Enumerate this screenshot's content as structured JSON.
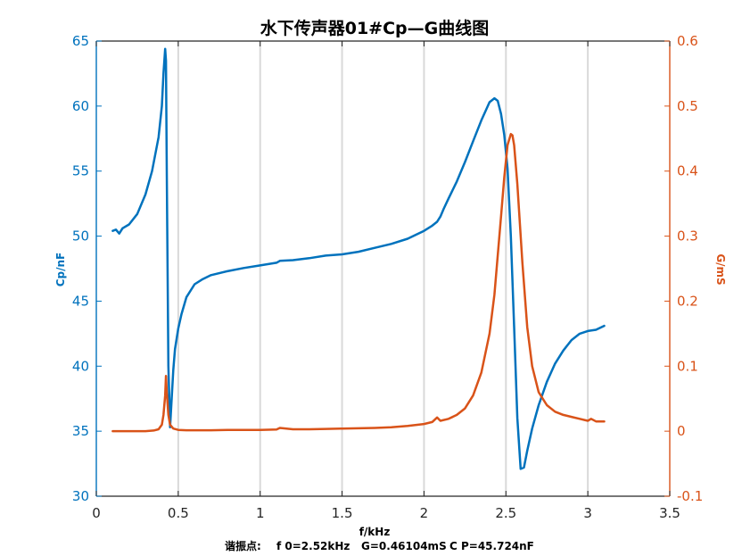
{
  "chart_data": {
    "type": "line",
    "title": "水下传声器01#Cp—G曲线图",
    "xlabel": "f/kHz",
    "ylabel_left": "Cp/nF",
    "ylabel_right": "G/mS",
    "xlim": [
      0,
      3.5
    ],
    "ylim_left": [
      30,
      65
    ],
    "ylim_right": [
      -0.1,
      0.6
    ],
    "x_ticks": [
      "0",
      "0.5",
      "1",
      "1.5",
      "2",
      "2.5",
      "3",
      "3.5"
    ],
    "y_left_ticks": [
      "30",
      "35",
      "40",
      "45",
      "50",
      "55",
      "60",
      "65"
    ],
    "y_right_ticks": [
      "-0.1",
      "0",
      "0.1",
      "0.2",
      "0.3",
      "0.4",
      "0.5",
      "0.6"
    ],
    "grid": "vertical only",
    "colors": {
      "cp": "#0072BD",
      "g": "#D95319"
    },
    "series": [
      {
        "axis": "left",
        "color": "#0072BD",
        "x": [
          0.1,
          0.12,
          0.14,
          0.16,
          0.2,
          0.25,
          0.3,
          0.34,
          0.38,
          0.4,
          0.41,
          0.42,
          0.425,
          0.43,
          0.44,
          0.45,
          0.46,
          0.47,
          0.48,
          0.5,
          0.52,
          0.55,
          0.6,
          0.65,
          0.7,
          0.8,
          0.9,
          1.0,
          1.1,
          1.12,
          1.2,
          1.3,
          1.4,
          1.5,
          1.6,
          1.7,
          1.8,
          1.9,
          1.95,
          2.0,
          2.05,
          2.08,
          2.1,
          2.12,
          2.15,
          2.2,
          2.25,
          2.3,
          2.35,
          2.4,
          2.43,
          2.45,
          2.47,
          2.49,
          2.51,
          2.53,
          2.55,
          2.57,
          2.59,
          2.61,
          2.63,
          2.66,
          2.7,
          2.75,
          2.8,
          2.85,
          2.9,
          2.95,
          3.0,
          3.05,
          3.1
        ],
        "y": [
          50.4,
          50.5,
          50.2,
          50.6,
          50.9,
          51.7,
          53.2,
          55.0,
          57.6,
          60.0,
          62.5,
          64.4,
          63.5,
          55.0,
          40.0,
          35.3,
          37.5,
          39.7,
          41.3,
          42.9,
          44.0,
          45.3,
          46.3,
          46.7,
          47.0,
          47.3,
          47.55,
          47.75,
          47.95,
          48.1,
          48.15,
          48.3,
          48.5,
          48.6,
          48.8,
          49.1,
          49.4,
          49.8,
          50.1,
          50.4,
          50.8,
          51.1,
          51.5,
          52.1,
          52.9,
          54.2,
          55.7,
          57.3,
          58.9,
          60.3,
          60.6,
          60.4,
          59.4,
          57.8,
          55.2,
          50.0,
          43.0,
          36.0,
          32.1,
          32.2,
          33.5,
          35.2,
          37.0,
          38.8,
          40.2,
          41.2,
          42.0,
          42.5,
          42.7,
          42.8,
          43.1
        ]
      },
      {
        "axis": "right",
        "color": "#D95319",
        "x": [
          0.1,
          0.2,
          0.3,
          0.35,
          0.38,
          0.4,
          0.41,
          0.42,
          0.425,
          0.43,
          0.44,
          0.45,
          0.47,
          0.5,
          0.55,
          0.6,
          0.7,
          0.8,
          0.9,
          1.0,
          1.1,
          1.12,
          1.2,
          1.3,
          1.4,
          1.5,
          1.6,
          1.7,
          1.8,
          1.9,
          2.0,
          2.05,
          2.08,
          2.1,
          2.15,
          2.2,
          2.25,
          2.3,
          2.35,
          2.4,
          2.43,
          2.45,
          2.47,
          2.49,
          2.51,
          2.53,
          2.54,
          2.55,
          2.57,
          2.6,
          2.63,
          2.66,
          2.7,
          2.75,
          2.8,
          2.85,
          2.9,
          2.95,
          3.0,
          3.02,
          3.05,
          3.1
        ],
        "y": [
          0.0,
          0.0,
          0.0,
          0.001,
          0.003,
          0.01,
          0.025,
          0.055,
          0.085,
          0.06,
          0.025,
          0.01,
          0.004,
          0.002,
          0.0015,
          0.0015,
          0.0015,
          0.0018,
          0.002,
          0.002,
          0.0025,
          0.005,
          0.003,
          0.003,
          0.0035,
          0.004,
          0.0045,
          0.005,
          0.006,
          0.008,
          0.011,
          0.014,
          0.021,
          0.016,
          0.019,
          0.025,
          0.035,
          0.055,
          0.09,
          0.15,
          0.21,
          0.27,
          0.33,
          0.39,
          0.44,
          0.457,
          0.455,
          0.44,
          0.38,
          0.26,
          0.16,
          0.1,
          0.06,
          0.04,
          0.03,
          0.025,
          0.022,
          0.019,
          0.016,
          0.019,
          0.015,
          0.015
        ]
      }
    ],
    "annotation": {
      "label": "谐振点:",
      "f0": "f 0=2.52kHz",
      "g": "G=0.46104mS",
      "cp": "C P=45.724nF"
    }
  }
}
